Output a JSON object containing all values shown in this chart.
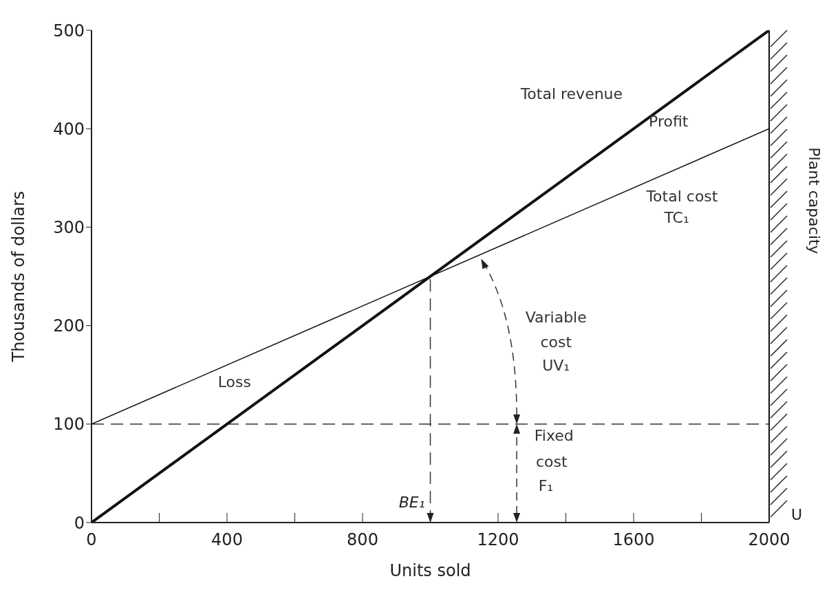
{
  "chart_data": {
    "type": "line",
    "xlabel": "Units sold",
    "ylabel": "Thousands of dollars",
    "x": [
      0,
      2000
    ],
    "series": [
      {
        "name": "Total revenue",
        "color": "#111111",
        "values": [
          0,
          500
        ]
      },
      {
        "name": "Total cost",
        "color": "#111111",
        "values": [
          100,
          400
        ]
      }
    ],
    "xlim": [
      0,
      2000
    ],
    "ylim": [
      0,
      500
    ],
    "xticks": [
      0,
      {
        "value": 200,
        "label": null
      },
      400,
      {
        "value": 600,
        "label": null
      },
      800,
      {
        "value": 1000,
        "label": null
      },
      1200,
      {
        "value": 1400,
        "label": null
      },
      1600,
      {
        "value": 1800,
        "label": null
      },
      2000
    ],
    "yticks": [
      0,
      100,
      200,
      300,
      400,
      500
    ],
    "marker": "none",
    "line_style": "solid",
    "ref_lines": [
      {
        "axis": "y",
        "value": 100,
        "line_style": "dashed",
        "color": "#333333"
      },
      {
        "axis": "x",
        "value": 1000,
        "label": "BE₁",
        "line_style": "dashed",
        "color": "#333333"
      },
      {
        "axis": "x",
        "value": 2000,
        "label": "Plant capacity",
        "line_style": "solid",
        "color": "#111111"
      }
    ],
    "annotations": [
      "Profit",
      "TC₁",
      "Loss",
      "Variable",
      "cost",
      "UV₁",
      "Fixed",
      "cost",
      "F₁",
      "U"
    ]
  }
}
